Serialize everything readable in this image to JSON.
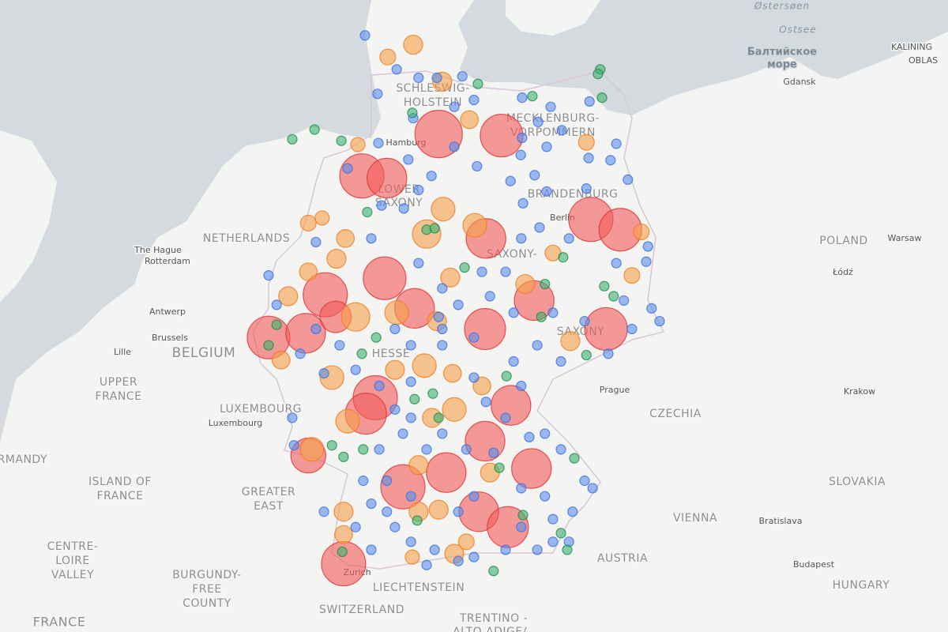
{
  "labels": [
    "Østersøen",
    "Ostsee",
    "Балтийское",
    "море",
    "KALINING",
    "OBLAS",
    "Gdansk",
    "SCHLESWIG-",
    "HOLSTEIN",
    "MECKLENBURG-",
    "VORPOMMERN",
    "Hamburg",
    "LOWER",
    "SAXONY",
    "BRANDENBURG",
    "Berlin",
    "NETHERLANDS",
    "The Hague",
    "Rotterdam",
    "POLAND",
    "Warsaw",
    "Łódź",
    "SAXONY-",
    "Antwerp",
    "Brussels",
    "BELGIUM",
    "Lille",
    "HESSE",
    "SAXONY",
    "Prague",
    "Krakow",
    "CZECHIA",
    "UPPER",
    "FRANCE",
    "LUXEMBOURG",
    "Luxembourg",
    "NORMANDY",
    "ISLAND OF",
    "FRANCE",
    "GREATER",
    "EAST",
    "SLOVAKIA",
    "VIENNA",
    "Bratislava",
    "CENTRE-",
    "LOIRE",
    "VALLEY",
    "BURGUNDY-",
    "FREE",
    "COUNTY",
    "Zurich",
    "AUSTRIA",
    "Budapest",
    "HUNGARY",
    "LIECHTENSTEIN",
    "SWITZERLAND",
    "TRENTINO -",
    "ALTO ADIGE/",
    "FRANCE"
  ],
  "layers": [
    {
      "color": "#f25a5a",
      "stroke": "#e03131",
      "points": [
        [
          10.04,
          53.64,
          100
        ],
        [
          11.45,
          53.62,
          81
        ],
        [
          8.32,
          53.08,
          87
        ],
        [
          8.88,
          53.05,
          70
        ],
        [
          8.83,
          51.68,
          81
        ],
        [
          7.5,
          51.45,
          87
        ],
        [
          6.23,
          50.85,
          81
        ],
        [
          7.06,
          50.91,
          70
        ],
        [
          7.73,
          51.14,
          44
        ],
        [
          13.45,
          52.49,
          87
        ],
        [
          14.11,
          52.35,
          81
        ],
        [
          11.08,
          50.97,
          75
        ],
        [
          9.5,
          51.26,
          70
        ],
        [
          12.18,
          51.37,
          70
        ],
        [
          13.79,
          50.97,
          81
        ],
        [
          8.62,
          49.99,
          87
        ],
        [
          8.41,
          49.76,
          75
        ],
        [
          11.66,
          49.88,
          70
        ],
        [
          11.08,
          49.36,
          70
        ],
        [
          7.12,
          49.15,
          54
        ],
        [
          9.24,
          48.69,
          87
        ],
        [
          10.21,
          48.9,
          70
        ],
        [
          12.12,
          48.96,
          70
        ],
        [
          10.94,
          48.32,
          70
        ],
        [
          11.59,
          48.09,
          75
        ],
        [
          7.91,
          47.54,
          87
        ],
        [
          11.1,
          52.23,
          70
        ]
      ]
    },
    {
      "color": "#f5a04a",
      "stroke": "#f07b1f",
      "points": [
        [
          9.47,
          54.81,
          16
        ],
        [
          8.9,
          54.65,
          11
        ],
        [
          10.12,
          54.33,
          16
        ],
        [
          10.73,
          53.83,
          14
        ],
        [
          13.35,
          53.53,
          11
        ],
        [
          8.23,
          53.5,
          9
        ],
        [
          10.14,
          52.63,
          25
        ],
        [
          10.85,
          52.41,
          25
        ],
        [
          9.77,
          52.29,
          36
        ],
        [
          7.12,
          52.44,
          11
        ],
        [
          7.43,
          52.51,
          9
        ],
        [
          7.95,
          52.23,
          14
        ],
        [
          7.75,
          51.95,
          16
        ],
        [
          7.12,
          51.77,
          14
        ],
        [
          6.67,
          51.43,
          16
        ],
        [
          10.3,
          51.69,
          16
        ],
        [
          9.1,
          51.2,
          25
        ],
        [
          10.0,
          51.08,
          16
        ],
        [
          12.99,
          50.8,
          16
        ],
        [
          9.06,
          50.39,
          16
        ],
        [
          9.72,
          50.45,
          25
        ],
        [
          7.65,
          50.28,
          25
        ],
        [
          10.35,
          50.34,
          14
        ],
        [
          11.01,
          50.16,
          14
        ],
        [
          8.0,
          49.65,
          25
        ],
        [
          10.39,
          49.82,
          25
        ],
        [
          9.89,
          49.7,
          16
        ],
        [
          7.2,
          49.24,
          25
        ],
        [
          7.91,
          48.32,
          16
        ],
        [
          10.04,
          48.35,
          16
        ],
        [
          9.59,
          49.01,
          16
        ],
        [
          7.91,
          47.98,
          14
        ],
        [
          10.39,
          47.69,
          16
        ],
        [
          9.45,
          47.64,
          9
        ],
        [
          14.58,
          52.32,
          11
        ],
        [
          14.37,
          51.72,
          11
        ],
        [
          12.6,
          52.03,
          11
        ],
        [
          10.66,
          47.87,
          11
        ],
        [
          8.18,
          51.14,
          36
        ],
        [
          6.51,
          50.53,
          14
        ],
        [
          11.98,
          51.6,
          16
        ],
        [
          11.19,
          48.9,
          16
        ],
        [
          9.59,
          48.32,
          16
        ]
      ]
    },
    {
      "color": "#5b8def",
      "stroke": "#3b6fd8",
      "points": [
        [
          8.39,
          54.93,
          4
        ],
        [
          9.1,
          54.49,
          4
        ],
        [
          9.59,
          54.38,
          4
        ],
        [
          10.0,
          54.38,
          4
        ],
        [
          10.57,
          54.4,
          4
        ],
        [
          10.83,
          54.09,
          4
        ],
        [
          8.67,
          54.17,
          4
        ],
        [
          9.47,
          53.85,
          4
        ],
        [
          10.39,
          54.0,
          4
        ],
        [
          11.91,
          54.12,
          4
        ],
        [
          12.55,
          54.0,
          4
        ],
        [
          12.27,
          53.8,
          4
        ],
        [
          12.8,
          53.69,
          4
        ],
        [
          12.46,
          53.47,
          4
        ],
        [
          11.88,
          53.36,
          4
        ],
        [
          11.91,
          53.59,
          4
        ],
        [
          13.42,
          54.07,
          4
        ],
        [
          14.02,
          53.51,
          4
        ],
        [
          13.89,
          53.29,
          4
        ],
        [
          13.35,
          52.91,
          4
        ],
        [
          14.28,
          53.03,
          4
        ],
        [
          13.4,
          53.32,
          4
        ],
        [
          11.65,
          53.01,
          4
        ],
        [
          12.19,
          53.09,
          4
        ],
        [
          9.88,
          53.08,
          4
        ],
        [
          9.36,
          53.3,
          4
        ],
        [
          10.9,
          53.21,
          4
        ],
        [
          10.39,
          53.47,
          4
        ],
        [
          8.69,
          53.52,
          4
        ],
        [
          8.0,
          53.18,
          4
        ],
        [
          9.59,
          52.89,
          4
        ],
        [
          8.76,
          52.68,
          4
        ],
        [
          9.26,
          52.64,
          4
        ],
        [
          11.93,
          52.71,
          4
        ],
        [
          12.46,
          52.87,
          4
        ],
        [
          12.3,
          52.38,
          4
        ],
        [
          11.89,
          52.23,
          4
        ],
        [
          12.96,
          52.23,
          4
        ],
        [
          14.02,
          51.89,
          4
        ],
        [
          14.73,
          52.12,
          4
        ],
        [
          14.69,
          51.91,
          4
        ],
        [
          14.19,
          51.37,
          4
        ],
        [
          14.81,
          51.26,
          4
        ],
        [
          14.99,
          51.08,
          4
        ],
        [
          14.37,
          50.97,
          4
        ],
        [
          12.78,
          50.51,
          4
        ],
        [
          12.25,
          50.74,
          4
        ],
        [
          11.72,
          50.51,
          4
        ],
        [
          10.83,
          50.85,
          4
        ],
        [
          10.12,
          50.74,
          4
        ],
        [
          9.42,
          50.74,
          4
        ],
        [
          10.48,
          51.31,
          4
        ],
        [
          11.19,
          51.43,
          4
        ],
        [
          11.54,
          51.77,
          4
        ],
        [
          11.01,
          51.77,
          4
        ],
        [
          10.12,
          51.54,
          4
        ],
        [
          9.59,
          51.89,
          4
        ],
        [
          8.53,
          52.23,
          4
        ],
        [
          7.29,
          52.18,
          4
        ],
        [
          6.23,
          51.72,
          4
        ],
        [
          6.41,
          51.31,
          4
        ],
        [
          6.76,
          49.7,
          4
        ],
        [
          7.29,
          50.97,
          4
        ],
        [
          7.47,
          50.34,
          4
        ],
        [
          6.8,
          49.3,
          4
        ],
        [
          8.53,
          48.44,
          4
        ],
        [
          8.88,
          48.32,
          4
        ],
        [
          9.06,
          48.09,
          4
        ],
        [
          9.42,
          47.87,
          4
        ],
        [
          9.95,
          47.75,
          4
        ],
        [
          10.48,
          47.58,
          4
        ],
        [
          9.77,
          47.52,
          4
        ],
        [
          10.83,
          47.64,
          4
        ],
        [
          11.54,
          47.75,
          4
        ],
        [
          12.25,
          47.75,
          4
        ],
        [
          12.6,
          47.87,
          4
        ],
        [
          12.96,
          47.87,
          4
        ],
        [
          13.04,
          48.32,
          4
        ],
        [
          13.49,
          48.67,
          4
        ],
        [
          13.31,
          48.78,
          4
        ],
        [
          12.78,
          49.24,
          4
        ],
        [
          12.42,
          49.47,
          4
        ],
        [
          12.07,
          49.42,
          4
        ],
        [
          10.83,
          48.55,
          4
        ],
        [
          10.48,
          48.32,
          4
        ],
        [
          9.42,
          48.55,
          4
        ],
        [
          8.88,
          48.78,
          4
        ],
        [
          8.35,
          48.78,
          4
        ],
        [
          8.18,
          48.09,
          4
        ],
        [
          8.53,
          47.75,
          4
        ],
        [
          7.47,
          48.32,
          4
        ],
        [
          11.89,
          48.67,
          4
        ],
        [
          12.42,
          48.55,
          4
        ],
        [
          12.6,
          48.21,
          4
        ],
        [
          11.89,
          48.09,
          4
        ],
        [
          8.71,
          49.24,
          4
        ],
        [
          9.24,
          49.47,
          4
        ],
        [
          9.77,
          49.24,
          4
        ],
        [
          10.12,
          49.47,
          4
        ],
        [
          10.66,
          49.24,
          4
        ],
        [
          11.27,
          49.19,
          4
        ],
        [
          11.54,
          49.7,
          4
        ],
        [
          11.1,
          49.93,
          4
        ],
        [
          10.83,
          50.28,
          4
        ],
        [
          11.89,
          50.16,
          4
        ],
        [
          8.71,
          50.16,
          4
        ],
        [
          8.18,
          50.39,
          4
        ],
        [
          9.42,
          50.22,
          4
        ],
        [
          9.06,
          49.82,
          4
        ],
        [
          9.42,
          49.7,
          4
        ],
        [
          10.12,
          50.97,
          4
        ],
        [
          12.6,
          51.2,
          4
        ],
        [
          13.31,
          51.08,
          4
        ],
        [
          13.84,
          50.62,
          4
        ],
        [
          11.72,
          51.2,
          4
        ],
        [
          10.04,
          51.14,
          4
        ],
        [
          9.06,
          50.97,
          4
        ],
        [
          7.82,
          50.74,
          4
        ],
        [
          6.94,
          50.62,
          4
        ]
      ]
    },
    {
      "color": "#3cb371",
      "stroke": "#1f8a4c",
      "points": [
        [
          13.66,
          54.49,
          4
        ],
        [
          13.61,
          54.43,
          4
        ],
        [
          10.92,
          54.3,
          4
        ],
        [
          12.14,
          54.14,
          4
        ],
        [
          13.7,
          54.12,
          4
        ],
        [
          6.76,
          53.57,
          4
        ],
        [
          7.26,
          53.7,
          4
        ],
        [
          7.86,
          53.55,
          4
        ],
        [
          9.45,
          53.92,
          4
        ],
        [
          8.44,
          52.59,
          4
        ],
        [
          9.77,
          52.35,
          4
        ],
        [
          9.95,
          52.37,
          4
        ],
        [
          10.62,
          51.83,
          4
        ],
        [
          12.83,
          51.97,
          4
        ],
        [
          13.75,
          51.57,
          4
        ],
        [
          13.96,
          51.43,
          4
        ],
        [
          13.35,
          50.6,
          4
        ],
        [
          8.32,
          50.62,
          4
        ],
        [
          8.64,
          50.85,
          4
        ],
        [
          9.5,
          49.97,
          4
        ],
        [
          9.91,
          50.05,
          4
        ],
        [
          10.04,
          49.7,
          4
        ],
        [
          8.35,
          49.24,
          4
        ],
        [
          7.91,
          49.13,
          4
        ],
        [
          7.65,
          49.3,
          4
        ],
        [
          11.4,
          48.97,
          4
        ],
        [
          13.08,
          49.11,
          4
        ],
        [
          9.56,
          48.19,
          4
        ],
        [
          11.93,
          48.27,
          4
        ],
        [
          12.78,
          48.0,
          4
        ],
        [
          12.92,
          47.75,
          4
        ],
        [
          11.27,
          47.43,
          4
        ],
        [
          7.88,
          47.72,
          4
        ],
        [
          11.56,
          50.3,
          4
        ],
        [
          12.42,
          51.6,
          4
        ],
        [
          12.34,
          51.14,
          4
        ],
        [
          6.41,
          51.03,
          4
        ],
        [
          6.23,
          50.74,
          4
        ]
      ]
    }
  ]
}
